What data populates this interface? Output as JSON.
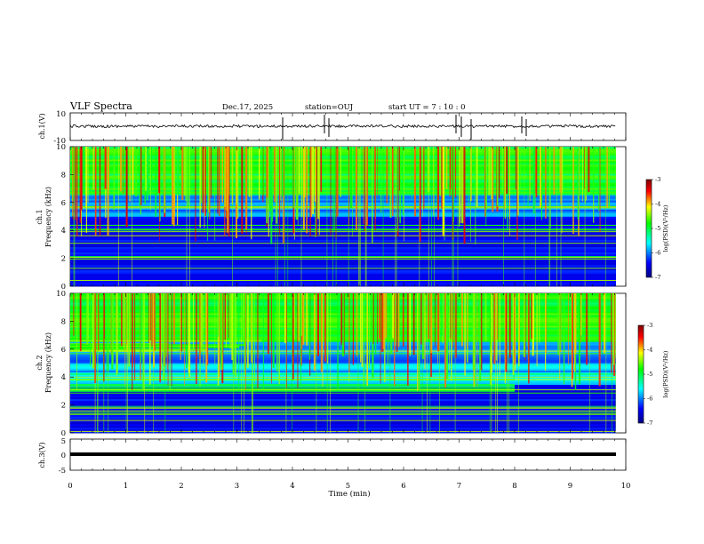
{
  "header": {
    "title": "VLF Spectra",
    "date": "Dec.17, 2025",
    "station": "station=OUJ",
    "start": "start  UT =   7 : 10 : 0"
  },
  "chart_data": [
    {
      "type": "line",
      "ylabel": "ch.1(V)",
      "ylim": [
        -10,
        10
      ],
      "y_ticks": [
        "10",
        "-10"
      ],
      "xlim": [
        0,
        10
      ],
      "series": [
        {
          "values_description": "~0 V baseline with sparse spikes"
        }
      ]
    },
    {
      "type": "heatmap",
      "ylabel_line1": "ch.1",
      "ylabel_line2": "Frequency (kHz)",
      "ylim": [
        0,
        10
      ],
      "y_ticks": [
        "0",
        "2",
        "4",
        "6",
        "8",
        "10"
      ],
      "xlim": [
        0,
        10
      ],
      "colorbar": {
        "label": "log(PSD)(V²/Hz)",
        "range": [
          -7,
          -3
        ],
        "ticks": [
          "-3",
          "-4",
          "-5",
          "-6",
          "-7"
        ]
      }
    },
    {
      "type": "heatmap",
      "ylabel_line1": "ch.2",
      "ylabel_line2": "Frequency (kHz)",
      "ylim": [
        0,
        10
      ],
      "y_ticks": [
        "0",
        "2",
        "4",
        "6",
        "8",
        "10"
      ],
      "xlim": [
        0,
        10
      ],
      "colorbar": {
        "label": "log(PSD)(V²/Hz)",
        "range": [
          -7,
          -3
        ],
        "ticks": [
          "-3",
          "-4",
          "-5",
          "-6",
          "-7"
        ]
      }
    },
    {
      "type": "line",
      "ylabel": "ch.3(V)",
      "ylim": [
        -5,
        5
      ],
      "y_ticks": [
        "5",
        "0",
        "-5"
      ],
      "xlim": [
        0,
        10
      ],
      "series": [
        {
          "values_description": "constant ~ -1 V"
        }
      ]
    }
  ],
  "x_axis": {
    "label": "Time (min)",
    "ticks": [
      "0",
      "1",
      "2",
      "3",
      "4",
      "5",
      "6",
      "7",
      "8",
      "9",
      "10"
    ]
  },
  "colors": {
    "colormap": [
      "#000080",
      "#0000ff",
      "#00ffff",
      "#00ff00",
      "#ffff00",
      "#ff0000",
      "#800000"
    ]
  }
}
